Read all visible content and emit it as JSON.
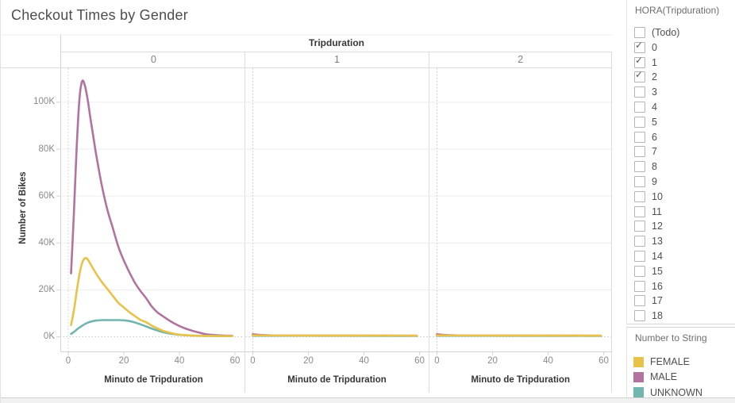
{
  "title": "Checkout Times by Gender",
  "sidebar": {
    "filter": {
      "title": "HORA(Tripduration)",
      "items": [
        {
          "label": "(Todo)",
          "checked": false
        },
        {
          "label": "0",
          "checked": true
        },
        {
          "label": "1",
          "checked": true
        },
        {
          "label": "2",
          "checked": true
        },
        {
          "label": "3",
          "checked": false
        },
        {
          "label": "4",
          "checked": false
        },
        {
          "label": "5",
          "checked": false
        },
        {
          "label": "6",
          "checked": false
        },
        {
          "label": "7",
          "checked": false
        },
        {
          "label": "8",
          "checked": false
        },
        {
          "label": "9",
          "checked": false
        },
        {
          "label": "10",
          "checked": false
        },
        {
          "label": "11",
          "checked": false
        },
        {
          "label": "12",
          "checked": false
        },
        {
          "label": "13",
          "checked": false
        },
        {
          "label": "14",
          "checked": false
        },
        {
          "label": "15",
          "checked": false
        },
        {
          "label": "16",
          "checked": false
        },
        {
          "label": "17",
          "checked": false
        },
        {
          "label": "18",
          "checked": false
        }
      ]
    },
    "legend": {
      "title": "Number to String",
      "items": [
        {
          "label": "FEMALE",
          "color": "#E9C24A"
        },
        {
          "label": "MALE",
          "color": "#B1739F"
        },
        {
          "label": "UNKNOWN",
          "color": "#72B5AF"
        }
      ]
    }
  },
  "chart_data": {
    "type": "line",
    "title": "Checkout Times by Gender",
    "facet_field": "Tripduration",
    "xlabel": "Minuto de Tripduration",
    "ylabel": "Number of Bikes",
    "x_ticks": [
      0,
      20,
      40,
      60
    ],
    "y_ticks": [
      {
        "v": 0,
        "label": "0K"
      },
      {
        "v": 20,
        "label": "20K"
      },
      {
        "v": 40,
        "label": "40K"
      },
      {
        "v": 60,
        "label": "60K"
      },
      {
        "v": 80,
        "label": "80K"
      },
      {
        "v": 100,
        "label": "100K"
      }
    ],
    "xlim": [
      0,
      60
    ],
    "ylim_thousands": [
      0,
      115
    ],
    "grid": "horizontal",
    "legend_position": "right",
    "units": "thousands of bikes",
    "facets": [
      {
        "label": "0",
        "series": [
          {
            "name": "MALE",
            "color": "#B1739F",
            "points": [
              [
                1,
                27
              ],
              [
                2,
                52
              ],
              [
                3,
                80
              ],
              [
                4,
                101
              ],
              [
                5,
                109
              ],
              [
                6,
                107
              ],
              [
                7,
                101
              ],
              [
                8,
                93
              ],
              [
                9,
                85.5
              ],
              [
                10,
                78
              ],
              [
                12,
                65
              ],
              [
                14,
                54.5
              ],
              [
                16,
                46.5
              ],
              [
                18,
                38.5
              ],
              [
                20,
                32.5
              ],
              [
                22,
                27.5
              ],
              [
                24,
                23
              ],
              [
                26,
                19.5
              ],
              [
                28,
                16.5
              ],
              [
                30,
                13
              ],
              [
                32,
                10.5
              ],
              [
                34,
                8.8
              ],
              [
                36,
                7.2
              ],
              [
                38,
                5.8
              ],
              [
                40,
                4.6
              ],
              [
                42,
                3.6
              ],
              [
                44,
                2.8
              ],
              [
                46,
                2.1
              ],
              [
                48,
                1.5
              ],
              [
                50,
                1
              ],
              [
                53,
                0.7
              ],
              [
                56,
                0.5
              ],
              [
                59,
                0.45
              ]
            ]
          },
          {
            "name": "UNKNOWN",
            "color": "#72B5AF",
            "points": [
              [
                1,
                1.2
              ],
              [
                2,
                2
              ],
              [
                3,
                3
              ],
              [
                4,
                3.9
              ],
              [
                5,
                4.7
              ],
              [
                6,
                5.4
              ],
              [
                7,
                6
              ],
              [
                8,
                6.4
              ],
              [
                9,
                6.7
              ],
              [
                10,
                6.9
              ],
              [
                12,
                7.1
              ],
              [
                14,
                7.1
              ],
              [
                16,
                7.1
              ],
              [
                18,
                7.1
              ],
              [
                20,
                7
              ],
              [
                22,
                6.7
              ],
              [
                24,
                6.1
              ],
              [
                26,
                5.3
              ],
              [
                28,
                4.4
              ],
              [
                30,
                3.5
              ],
              [
                32,
                2.7
              ],
              [
                34,
                2
              ],
              [
                36,
                1.5
              ],
              [
                38,
                1.1
              ],
              [
                40,
                0.8
              ],
              [
                43,
                0.6
              ],
              [
                46,
                0.45
              ],
              [
                50,
                0.35
              ],
              [
                55,
                0.3
              ],
              [
                59,
                0.3
              ]
            ]
          },
          {
            "name": "FEMALE",
            "color": "#E9C24A",
            "points": [
              [
                1,
                5
              ],
              [
                2,
                11
              ],
              [
                3,
                19
              ],
              [
                4,
                26.5
              ],
              [
                5,
                31.5
              ],
              [
                6,
                33.5
              ],
              [
                7,
                33
              ],
              [
                8,
                31
              ],
              [
                9,
                29
              ],
              [
                10,
                27
              ],
              [
                12,
                23.5
              ],
              [
                14,
                20.5
              ],
              [
                16,
                17.5
              ],
              [
                18,
                14.5
              ],
              [
                20,
                12.5
              ],
              [
                22,
                10.5
              ],
              [
                24,
                8.8
              ],
              [
                26,
                7.2
              ],
              [
                28,
                6.2
              ],
              [
                30,
                4.8
              ],
              [
                32,
                3.6
              ],
              [
                34,
                2.6
              ],
              [
                36,
                1.9
              ],
              [
                38,
                1.3
              ],
              [
                40,
                0.9
              ],
              [
                43,
                0.6
              ],
              [
                46,
                0.45
              ],
              [
                50,
                0.35
              ],
              [
                55,
                0.3
              ],
              [
                59,
                0.3
              ]
            ]
          }
        ]
      },
      {
        "label": "1",
        "series": [
          {
            "name": "MALE",
            "color": "#B1739F",
            "points": [
              [
                0,
                1.1
              ],
              [
                2,
                0.85
              ],
              [
                4,
                0.7
              ],
              [
                8,
                0.55
              ],
              [
                15,
                0.5
              ],
              [
                59,
                0.45
              ]
            ]
          },
          {
            "name": "UNKNOWN",
            "color": "#72B5AF",
            "points": [
              [
                0,
                0.45
              ],
              [
                59,
                0.35
              ]
            ]
          },
          {
            "name": "FEMALE",
            "color": "#E9C24A",
            "points": [
              [
                0,
                0.6
              ],
              [
                10,
                0.55
              ],
              [
                59,
                0.5
              ]
            ]
          }
        ]
      },
      {
        "label": "2",
        "series": [
          {
            "name": "MALE",
            "color": "#B1739F",
            "points": [
              [
                0,
                1.1
              ],
              [
                2,
                0.85
              ],
              [
                4,
                0.7
              ],
              [
                8,
                0.55
              ],
              [
                15,
                0.5
              ],
              [
                59,
                0.45
              ]
            ]
          },
          {
            "name": "UNKNOWN",
            "color": "#72B5AF",
            "points": [
              [
                0,
                0.45
              ],
              [
                59,
                0.35
              ]
            ]
          },
          {
            "name": "FEMALE",
            "color": "#E9C24A",
            "points": [
              [
                0,
                0.6
              ],
              [
                10,
                0.55
              ],
              [
                59,
                0.5
              ]
            ]
          }
        ]
      }
    ]
  }
}
